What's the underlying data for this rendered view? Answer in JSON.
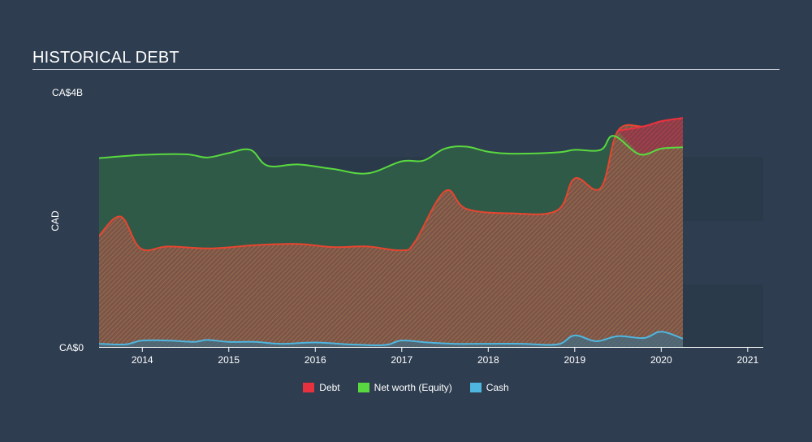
{
  "title": "HISTORICAL DEBT",
  "colors": {
    "background": "#2e3d50",
    "debt": "#e8313f",
    "equity": "#59d93f",
    "cash": "#4fb6e0"
  },
  "chart_data": {
    "type": "area",
    "title": "HISTORICAL DEBT",
    "ylabel": "CAD",
    "ylim": [
      0,
      4
    ],
    "y_unit": "CA$ billions",
    "y_tick_labels": [
      "CA$0",
      "CA$4B"
    ],
    "x_tick_labels": [
      "2014",
      "2015",
      "2016",
      "2017",
      "2018",
      "2019",
      "2020",
      "2021"
    ],
    "xlim": [
      2013.5,
      2021.18
    ],
    "legend": [
      "Debt",
      "Net worth (Equity)",
      "Cash"
    ],
    "series": [
      {
        "name": "Debt",
        "x": [
          2013.5,
          2013.75,
          2013.98,
          2014.3,
          2014.8,
          2015.3,
          2015.8,
          2016.2,
          2016.6,
          2017.0,
          2017.15,
          2017.5,
          2017.75,
          2018.3,
          2018.8,
          2019.0,
          2019.3,
          2019.5,
          2019.8,
          2020.0,
          2020.25
        ],
        "values": [
          1.75,
          2.05,
          1.55,
          1.58,
          1.55,
          1.6,
          1.62,
          1.57,
          1.58,
          1.52,
          1.65,
          2.45,
          2.17,
          2.1,
          2.15,
          2.65,
          2.5,
          3.4,
          3.47,
          3.55,
          3.6
        ]
      },
      {
        "name": "Net worth (Equity)",
        "x": [
          2013.5,
          2014.0,
          2014.5,
          2014.75,
          2015.0,
          2015.25,
          2015.45,
          2015.8,
          2016.2,
          2016.6,
          2017.0,
          2017.25,
          2017.5,
          2017.75,
          2018.0,
          2018.3,
          2018.8,
          2019.0,
          2019.3,
          2019.45,
          2019.75,
          2020.0,
          2020.25
        ],
        "values": [
          2.97,
          3.02,
          3.03,
          2.98,
          3.05,
          3.1,
          2.85,
          2.87,
          2.8,
          2.73,
          2.92,
          2.93,
          3.12,
          3.15,
          3.07,
          3.04,
          3.06,
          3.1,
          3.1,
          3.32,
          3.03,
          3.12,
          3.14
        ]
      },
      {
        "name": "Cash",
        "x": [
          2013.5,
          2013.8,
          2014.0,
          2014.3,
          2014.6,
          2014.75,
          2015.0,
          2015.3,
          2015.6,
          2016.0,
          2016.4,
          2016.8,
          2017.0,
          2017.3,
          2017.6,
          2018.0,
          2018.4,
          2018.8,
          2019.0,
          2019.25,
          2019.5,
          2019.8,
          2020.0,
          2020.25
        ],
        "values": [
          0.05,
          0.04,
          0.1,
          0.1,
          0.08,
          0.11,
          0.08,
          0.08,
          0.05,
          0.07,
          0.04,
          0.03,
          0.1,
          0.07,
          0.05,
          0.05,
          0.05,
          0.04,
          0.18,
          0.09,
          0.17,
          0.14,
          0.24,
          0.13
        ]
      }
    ]
  }
}
